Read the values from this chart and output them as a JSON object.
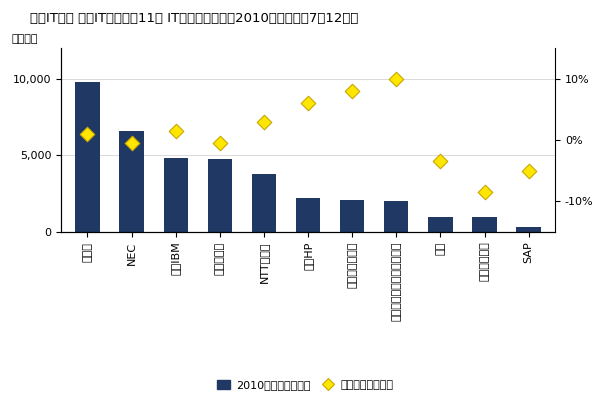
{
  "title": "国内IT市場 主要ITベンダー11社 IT製品売上額：　2010年下半期（7～12月）",
  "ylabel_left": "（億円）",
  "categories": [
    "富士通",
    "NEC",
    "日本IBM",
    "日立製作所",
    "NTTデータ",
    "日本HP",
    "マイクロソフト",
    "東芝／東芝ソリューション",
    "デル",
    "日本ユニシス",
    "SAP"
  ],
  "bar_values": [
    9800,
    6600,
    4800,
    4750,
    3800,
    2200,
    2100,
    2050,
    1000,
    950,
    300
  ],
  "growth_rates": [
    1.0,
    -0.5,
    1.5,
    -0.5,
    3.0,
    6.0,
    8.0,
    10.0,
    -3.5,
    -8.5,
    -5.0
  ],
  "bar_color": "#1F3864",
  "diamond_color": "#FFE600",
  "diamond_edge_color": "#C8A800",
  "ylim_left": [
    0,
    12000
  ],
  "ylim_right": [
    -15,
    15
  ],
  "yticks_left": [
    0,
    5000,
    10000
  ],
  "yticks_right": [
    -10,
    0,
    10
  ],
  "legend_bar_label": "2010年下半期売上額",
  "legend_diamond_label": "前年同期比成長率",
  "background_color": "#FFFFFF",
  "title_fontsize": 9.5,
  "axis_fontsize": 8,
  "tick_fontsize": 8
}
